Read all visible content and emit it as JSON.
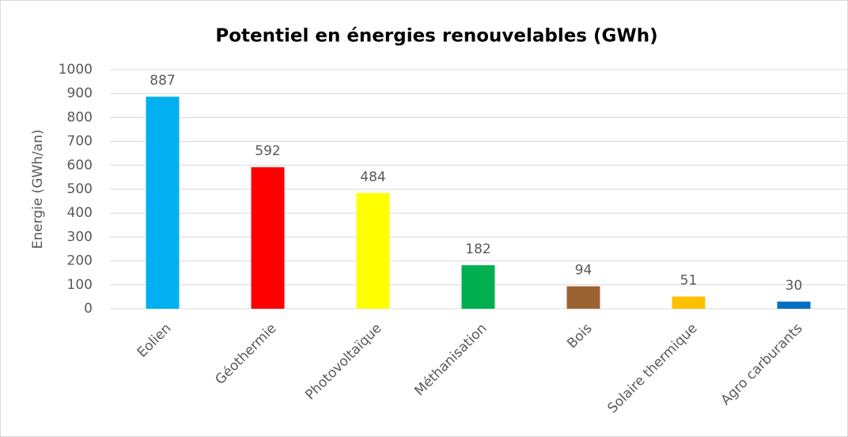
{
  "chart_data": {
    "type": "bar",
    "title": "Potentiel en énergies renouvelables (GWh)",
    "y_label": "Energie (GWh/an)",
    "categories": [
      "Eolien",
      "Géothermie",
      "Photovoltaïque",
      "Méthanisation",
      "Bois",
      "Solaire thermique",
      "Agro carburants"
    ],
    "values": [
      887,
      592,
      484,
      182,
      94,
      51,
      30
    ],
    "colors": [
      "#00b0f0",
      "#ff0000",
      "#ffff00",
      "#00b050",
      "#9c6332",
      "#ffc000",
      "#0070c0"
    ],
    "ylim": [
      0,
      1000
    ],
    "yticks": [
      0,
      100,
      200,
      300,
      400,
      500,
      600,
      700,
      800,
      900,
      1000
    ],
    "grid": true
  }
}
